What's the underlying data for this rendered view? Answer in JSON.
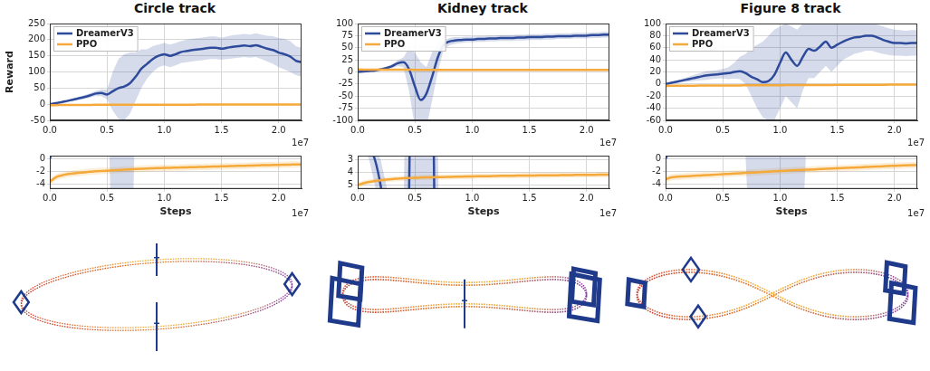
{
  "chart_data": [
    {
      "type": "line",
      "title": "Circle track",
      "ylabel": "Reward",
      "grid": true,
      "legend": "upper left",
      "annotations": [
        "1e7"
      ],
      "x": [
        0,
        0.05,
        0.1,
        0.15,
        0.2,
        0.25,
        0.3,
        0.35,
        0.4,
        0.45,
        0.5,
        0.55,
        0.6,
        0.65,
        0.7,
        0.75,
        0.8,
        0.85,
        0.9,
        0.95,
        1,
        1.05,
        1.1,
        1.15,
        1.2,
        1.25,
        1.3,
        1.35,
        1.4,
        1.45,
        1.5,
        1.55,
        1.6,
        1.65,
        1.7,
        1.75,
        1.8,
        1.85,
        1.9,
        1.95,
        2,
        2.05,
        2.1,
        2.15,
        2.2
      ],
      "xlim": [
        0,
        2.2
      ],
      "xticks": [
        {
          "value": 0,
          "label": "0.0"
        },
        {
          "value": 0.5,
          "label": "0.5"
        },
        {
          "value": 1,
          "label": "1.0"
        },
        {
          "value": 1.5,
          "label": "1.5"
        },
        {
          "value": 2,
          "label": "2.0"
        }
      ],
      "ylim": [
        -50,
        250
      ],
      "yticks": [
        -50,
        0,
        50,
        100,
        150,
        200,
        250
      ],
      "series": [
        {
          "name": "DreamerV3",
          "color": "#2e4a9b",
          "values": [
            0,
            3,
            6,
            10,
            14,
            18,
            22,
            27,
            33,
            35,
            30,
            40,
            50,
            55,
            65,
            85,
            110,
            125,
            140,
            150,
            155,
            150,
            155,
            162,
            165,
            168,
            170,
            172,
            175,
            175,
            172,
            175,
            178,
            180,
            182,
            180,
            183,
            178,
            172,
            168,
            160,
            155,
            148,
            135,
            130
          ],
          "lower": [
            0,
            2,
            4,
            7,
            10,
            13,
            16,
            20,
            25,
            25,
            15,
            -20,
            -45,
            -50,
            -30,
            10,
            50,
            80,
            100,
            115,
            120,
            115,
            120,
            128,
            130,
            133,
            135,
            137,
            140,
            140,
            138,
            140,
            142,
            144,
            146,
            144,
            146,
            140,
            132,
            125,
            115,
            108,
            100,
            90,
            85
          ],
          "upper": [
            0,
            4,
            8,
            13,
            18,
            23,
            28,
            34,
            41,
            45,
            45,
            100,
            140,
            155,
            160,
            160,
            170,
            170,
            180,
            185,
            190,
            185,
            190,
            196,
            200,
            203,
            205,
            207,
            210,
            210,
            206,
            210,
            214,
            216,
            218,
            216,
            220,
            216,
            212,
            211,
            205,
            202,
            196,
            180,
            175
          ]
        },
        {
          "name": "PPO",
          "color": "#f5a93a",
          "values": [
            -3.6,
            -2.9,
            -2.6,
            -2.4,
            -2.3,
            -2.2,
            -2.1,
            -2,
            -1.95,
            -1.9,
            -1.85,
            -1.8,
            -1.75,
            -1.7,
            -1.65,
            -1.6,
            -1.55,
            -1.5,
            -1.48,
            -1.45,
            -1.42,
            -1.4,
            -1.37,
            -1.35,
            -1.32,
            -1.3,
            -1.27,
            -1.25,
            -1.22,
            -1.2,
            -1.17,
            -1.15,
            -1.12,
            -1.1,
            -1.08,
            -1.05,
            -1.03,
            -1,
            -0.98,
            -0.96,
            -0.94,
            -0.92,
            -0.9,
            -0.88,
            -0.87
          ],
          "lower": [
            -4.1,
            -3.4,
            -3.1,
            -2.9,
            -2.8,
            -2.7,
            -2.6,
            -2.5,
            -2.45,
            -2.4,
            -2.35,
            -2.3,
            -2.25,
            -2.2,
            -2.15,
            -2.1,
            -2.05,
            -2,
            -1.98,
            -1.95,
            -1.92,
            -1.9,
            -1.87,
            -1.85,
            -1.82,
            -1.8,
            -1.77,
            -1.75,
            -1.72,
            -1.7,
            -1.67,
            -1.65,
            -1.62,
            -1.6,
            -1.58,
            -1.55,
            -1.53,
            -1.5,
            -1.48,
            -1.46,
            -1.44,
            -1.42,
            -1.4,
            -1.38,
            -1.37
          ],
          "upper": [
            -3.1,
            -2.4,
            -2.1,
            -1.9,
            -1.8,
            -1.7,
            -1.6,
            -1.5,
            -1.45,
            -1.4,
            -1.35,
            -1.3,
            -1.25,
            -1.2,
            -1.15,
            -1.1,
            -1.05,
            -1,
            -0.98,
            -0.95,
            -0.92,
            -0.9,
            -0.87,
            -0.85,
            -0.82,
            -0.8,
            -0.77,
            -0.75,
            -0.72,
            -0.7,
            -0.67,
            -0.65,
            -0.62,
            -0.6,
            -0.58,
            -0.55,
            -0.53,
            -0.5,
            -0.48,
            -0.46,
            -0.44,
            -0.42,
            -0.4,
            -0.38,
            -0.37
          ]
        }
      ],
      "inset": {
        "type": "line",
        "xlabel": "Steps",
        "ylim": [
          -4.7,
          0.5
        ],
        "yticks": [
          0,
          -2,
          -4
        ]
      }
    },
    {
      "type": "line",
      "title": "Kidney track",
      "grid": true,
      "legend": "upper left",
      "annotations": [
        "1e7"
      ],
      "x": [
        0,
        0.05,
        0.1,
        0.15,
        0.2,
        0.25,
        0.3,
        0.35,
        0.4,
        0.45,
        0.5,
        0.55,
        0.6,
        0.65,
        0.7,
        0.75,
        0.8,
        0.85,
        0.9,
        0.95,
        1,
        1.05,
        1.1,
        1.15,
        1.2,
        1.25,
        1.3,
        1.35,
        1.4,
        1.45,
        1.5,
        1.55,
        1.6,
        1.65,
        1.7,
        1.75,
        1.8,
        1.85,
        1.9,
        1.95,
        2,
        2.05,
        2.1,
        2.15,
        2.2
      ],
      "xlim": [
        0,
        2.2
      ],
      "xticks": [
        {
          "value": 0,
          "label": "0.0"
        },
        {
          "value": 0.5,
          "label": "0.5"
        },
        {
          "value": 1,
          "label": "1.0"
        },
        {
          "value": 1.5,
          "label": "1.5"
        },
        {
          "value": 2,
          "label": "2.0"
        }
      ],
      "ylim": [
        -100,
        100
      ],
      "yticks": [
        -100,
        -75,
        -50,
        -25,
        0,
        25,
        50,
        75,
        100
      ],
      "series": [
        {
          "name": "DreamerV3",
          "color": "#2e4a9b",
          "values": [
            0,
            1,
            2,
            3,
            5,
            8,
            12,
            18,
            20,
            5,
            -30,
            -58,
            -45,
            -10,
            30,
            55,
            63,
            65,
            66,
            67,
            67,
            68,
            68,
            69,
            69,
            70,
            70,
            70,
            71,
            71,
            72,
            72,
            72,
            73,
            73,
            74,
            74,
            74,
            75,
            75,
            75,
            76,
            76,
            77,
            77
          ],
          "lower": [
            0,
            0,
            1,
            2,
            3,
            5,
            8,
            12,
            10,
            -40,
            -115,
            -115,
            -115,
            -60,
            0,
            45,
            55,
            58,
            60,
            61,
            61,
            62,
            62,
            63,
            63,
            64,
            64,
            64,
            65,
            65,
            66,
            66,
            66,
            67,
            67,
            68,
            68,
            68,
            69,
            69,
            69,
            70,
            70,
            71,
            71
          ],
          "upper": [
            0,
            2,
            3,
            5,
            7,
            11,
            16,
            24,
            30,
            50,
            40,
            20,
            10,
            40,
            60,
            65,
            70,
            72,
            72,
            73,
            73,
            74,
            74,
            75,
            75,
            76,
            76,
            76,
            77,
            77,
            78,
            78,
            78,
            79,
            79,
            80,
            80,
            80,
            81,
            81,
            81,
            82,
            82,
            83,
            83
          ]
        },
        {
          "name": "PPO",
          "color": "#f5a93a",
          "values": [
            5,
            4.85,
            4.75,
            4.68,
            4.62,
            4.57,
            4.53,
            4.5,
            4.47,
            4.45,
            4.43,
            4.41,
            4.4,
            4.39,
            4.38,
            4.37,
            4.36,
            4.35,
            4.34,
            4.33,
            4.32,
            4.31,
            4.3,
            4.3,
            4.29,
            4.28,
            4.28,
            4.27,
            4.26,
            4.26,
            4.25,
            4.25,
            4.24,
            4.24,
            4.23,
            4.23,
            4.22,
            4.22,
            4.21,
            4.21,
            4.2,
            4.2,
            4.19,
            4.19,
            4.18
          ],
          "lower": [
            4.8,
            4.65,
            4.55,
            4.48,
            4.42,
            4.37,
            4.33,
            4.3,
            4.27,
            4.25,
            4.23,
            4.21,
            4.2,
            4.19,
            4.18,
            4.17,
            4.16,
            4.15,
            4.14,
            4.13,
            4.12,
            4.11,
            4.1,
            4.1,
            4.09,
            4.08,
            4.08,
            4.07,
            4.06,
            4.06,
            4.05,
            4.05,
            4.04,
            4.04,
            4.03,
            4.03,
            4.02,
            4.02,
            4.01,
            4.01,
            4,
            4,
            3.99,
            3.99,
            3.98
          ],
          "upper": [
            5.2,
            5.05,
            4.95,
            4.88,
            4.82,
            4.77,
            4.73,
            4.7,
            4.67,
            4.65,
            4.63,
            4.61,
            4.6,
            4.59,
            4.58,
            4.57,
            4.56,
            4.55,
            4.54,
            4.53,
            4.52,
            4.51,
            4.5,
            4.5,
            4.49,
            4.48,
            4.48,
            4.47,
            4.46,
            4.46,
            4.45,
            4.45,
            4.44,
            4.44,
            4.43,
            4.43,
            4.42,
            4.42,
            4.41,
            4.41,
            4.4,
            4.4,
            4.39,
            4.39,
            4.38
          ]
        }
      ],
      "inset": {
        "type": "line",
        "xlabel": "Steps",
        "ylim": [
          5.3,
          2.7
        ],
        "yticks": [
          3,
          4,
          5
        ]
      }
    },
    {
      "type": "line",
      "title": "Figure 8 track",
      "grid": true,
      "legend": "upper left",
      "annotations": [
        "1e7"
      ],
      "x": [
        0,
        0.05,
        0.1,
        0.15,
        0.2,
        0.25,
        0.3,
        0.35,
        0.4,
        0.45,
        0.5,
        0.55,
        0.6,
        0.65,
        0.7,
        0.75,
        0.8,
        0.85,
        0.9,
        0.95,
        1,
        1.05,
        1.1,
        1.15,
        1.2,
        1.25,
        1.3,
        1.35,
        1.4,
        1.45,
        1.5,
        1.55,
        1.6,
        1.65,
        1.7,
        1.75,
        1.8,
        1.85,
        1.9,
        1.95,
        2,
        2.05,
        2.1,
        2.15,
        2.2
      ],
      "xlim": [
        0,
        2.2
      ],
      "xticks": [
        {
          "value": 0,
          "label": "0.0"
        },
        {
          "value": 0.5,
          "label": "0.5"
        },
        {
          "value": 1,
          "label": "1.0"
        },
        {
          "value": 1.5,
          "label": "1.5"
        },
        {
          "value": 2,
          "label": "2.0"
        }
      ],
      "ylim": [
        -60,
        100
      ],
      "yticks": [
        -60,
        -40,
        -20,
        0,
        20,
        40,
        60,
        80,
        100
      ],
      "series": [
        {
          "name": "DreamerV3",
          "color": "#2e4a9b",
          "values": [
            0,
            2,
            4,
            6,
            8,
            10,
            12,
            14,
            15,
            16,
            17,
            18,
            20,
            21,
            18,
            12,
            8,
            3,
            5,
            15,
            35,
            52,
            40,
            30,
            45,
            58,
            55,
            62,
            70,
            60,
            65,
            70,
            74,
            77,
            78,
            80,
            80,
            77,
            73,
            70,
            68,
            68,
            67,
            68,
            68
          ],
          "lower": [
            0,
            1,
            2,
            3,
            4,
            5,
            6,
            7,
            8,
            9,
            9,
            8,
            9,
            8,
            0,
            -20,
            -40,
            -55,
            -60,
            -60,
            -40,
            -20,
            -30,
            -40,
            -10,
            10,
            10,
            20,
            30,
            20,
            30,
            40,
            45,
            50,
            52,
            55,
            55,
            52,
            50,
            48,
            47,
            47,
            46,
            47,
            47
          ],
          "upper": [
            0,
            3,
            6,
            9,
            12,
            15,
            18,
            21,
            22,
            23,
            25,
            28,
            35,
            45,
            50,
            60,
            65,
            70,
            80,
            90,
            95,
            100,
            95,
            90,
            100,
            100,
            100,
            100,
            100,
            100,
            100,
            100,
            100,
            100,
            100,
            100,
            100,
            98,
            95,
            92,
            90,
            89,
            88,
            89,
            89
          ]
        },
        {
          "name": "PPO",
          "color": "#f5a93a",
          "values": [
            -3.2,
            -2.9,
            -2.8,
            -2.75,
            -2.7,
            -2.65,
            -2.6,
            -2.55,
            -2.5,
            -2.45,
            -2.4,
            -2.35,
            -2.3,
            -2.25,
            -2.2,
            -2.15,
            -2.1,
            -2.05,
            -2,
            -1.95,
            -1.9,
            -1.85,
            -1.8,
            -1.76,
            -1.72,
            -1.68,
            -1.64,
            -1.6,
            -1.56,
            -1.52,
            -1.48,
            -1.44,
            -1.4,
            -1.36,
            -1.32,
            -1.28,
            -1.24,
            -1.2,
            -1.16,
            -1.12,
            -1.08,
            -1.05,
            -1.02,
            -0.99,
            -0.96
          ],
          "lower": [
            -3.7,
            -3.4,
            -3.3,
            -3.25,
            -3.2,
            -3.15,
            -3.1,
            -3.05,
            -3,
            -2.95,
            -2.9,
            -2.85,
            -2.8,
            -2.75,
            -2.7,
            -2.65,
            -2.6,
            -2.55,
            -2.5,
            -2.45,
            -2.4,
            -2.35,
            -2.3,
            -2.26,
            -2.22,
            -2.18,
            -2.14,
            -2.1,
            -2.06,
            -2.02,
            -1.98,
            -1.94,
            -1.9,
            -1.86,
            -1.82,
            -1.78,
            -1.74,
            -1.7,
            -1.66,
            -1.62,
            -1.58,
            -1.55,
            -1.52,
            -1.49,
            -1.46
          ],
          "upper": [
            -2.7,
            -2.4,
            -2.3,
            -2.25,
            -2.2,
            -2.15,
            -2.1,
            -2.05,
            -2,
            -1.95,
            -1.9,
            -1.85,
            -1.8,
            -1.75,
            -1.7,
            -1.65,
            -1.6,
            -1.55,
            -1.5,
            -1.45,
            -1.4,
            -1.35,
            -1.3,
            -1.26,
            -1.22,
            -1.18,
            -1.14,
            -1.1,
            -1.06,
            -1.02,
            -0.98,
            -0.94,
            -0.9,
            -0.86,
            -0.82,
            -0.78,
            -0.74,
            -0.7,
            -0.66,
            -0.62,
            -0.58,
            -0.55,
            -0.52,
            -0.49,
            -0.46
          ]
        }
      ],
      "inset": {
        "type": "line",
        "xlabel": "Steps",
        "ylim": [
          -4.7,
          0.5
        ],
        "yticks": [
          0,
          -2,
          -4
        ]
      }
    }
  ]
}
